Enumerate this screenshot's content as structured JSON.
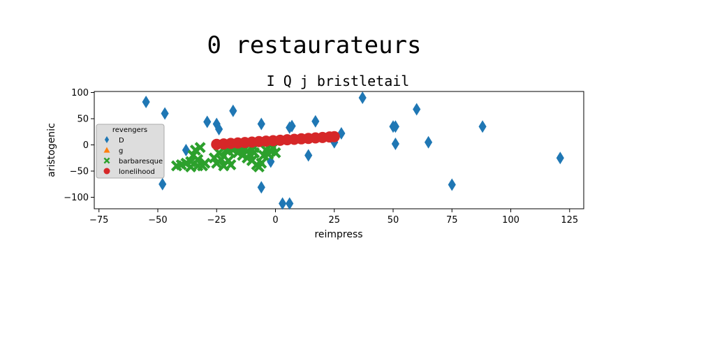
{
  "chart_data": {
    "type": "scatter",
    "suptitle": "0 restaurateurs",
    "title": "I Q j bristletail",
    "xlabel": "reimpress",
    "ylabel": "aristogenic",
    "xlim": [
      -77,
      131
    ],
    "ylim": [
      -122,
      102
    ],
    "xticks": [
      -75,
      -50,
      -25,
      0,
      25,
      50,
      75,
      100,
      125
    ],
    "yticks": [
      -100,
      -50,
      0,
      50,
      100
    ],
    "grid": false,
    "legend": {
      "title": "revengers",
      "placement": "center-left",
      "entries": [
        "D",
        "g",
        "barbaresque",
        "lonelihood"
      ]
    },
    "series": [
      {
        "name": "D",
        "marker": "thin-diamond",
        "color": "#1f77b4",
        "points": [
          [
            -55,
            82
          ],
          [
            -47,
            60
          ],
          [
            -48,
            -75
          ],
          [
            -38,
            -10
          ],
          [
            -29,
            44
          ],
          [
            -25,
            40
          ],
          [
            -24,
            30
          ],
          [
            -18,
            65
          ],
          [
            -6,
            40
          ],
          [
            -6,
            -81
          ],
          [
            -2,
            -32
          ],
          [
            3,
            -112
          ],
          [
            6,
            -112
          ],
          [
            6,
            33
          ],
          [
            7,
            36
          ],
          [
            14,
            -20
          ],
          [
            17,
            45
          ],
          [
            25,
            5
          ],
          [
            28,
            22
          ],
          [
            37,
            90
          ],
          [
            50,
            35
          ],
          [
            51,
            35
          ],
          [
            51,
            2
          ],
          [
            60,
            68
          ],
          [
            65,
            5
          ],
          [
            75,
            -76
          ],
          [
            88,
            35
          ],
          [
            121,
            -25
          ]
        ]
      },
      {
        "name": "g",
        "marker": "triangle",
        "color": "#ff7f0e",
        "points": []
      },
      {
        "name": "barbaresque",
        "marker": "x-filled",
        "color": "#2ca02c",
        "points": [
          [
            -42,
            -40
          ],
          [
            -40,
            -38
          ],
          [
            -38,
            -35
          ],
          [
            -36,
            -32
          ],
          [
            -35,
            -20
          ],
          [
            -34,
            -10
          ],
          [
            -33,
            -28
          ],
          [
            -32,
            -5
          ],
          [
            -31,
            -40
          ],
          [
            -30,
            -35
          ],
          [
            -33,
            -40
          ],
          [
            -36,
            -42
          ],
          [
            -26,
            -25
          ],
          [
            -25,
            -35
          ],
          [
            -24,
            -15
          ],
          [
            -23,
            -28
          ],
          [
            -22,
            -40
          ],
          [
            -21,
            -10
          ],
          [
            -20,
            -30
          ],
          [
            -19,
            -38
          ],
          [
            -18,
            -10
          ],
          [
            -16,
            -15
          ],
          [
            -15,
            -5
          ],
          [
            -14,
            -20
          ],
          [
            -13,
            -8
          ],
          [
            -12,
            -25
          ],
          [
            -11,
            -18
          ],
          [
            -10,
            -30
          ],
          [
            -9,
            -15
          ],
          [
            -8,
            -38
          ],
          [
            -7,
            -42
          ],
          [
            -6,
            -35
          ],
          [
            -5,
            -20
          ],
          [
            -4,
            -10
          ],
          [
            -3,
            -18
          ],
          [
            -2,
            -12
          ],
          [
            -1,
            -5
          ],
          [
            0,
            -15
          ],
          [
            -20,
            -12
          ],
          [
            -17,
            -5
          ],
          [
            -9,
            -5
          ],
          [
            -12,
            -12
          ]
        ]
      },
      {
        "name": "lonelihood",
        "marker": "circle",
        "color": "#d62728",
        "points": [
          [
            -25,
            1
          ],
          [
            -22,
            1.9
          ],
          [
            -19,
            2.8
          ],
          [
            -16,
            3.6
          ],
          [
            -13,
            4.5
          ],
          [
            -10,
            5.4
          ],
          [
            -7,
            6.3
          ],
          [
            -4,
            7.2
          ],
          [
            -1,
            8
          ],
          [
            2,
            8.9
          ],
          [
            5,
            9.8
          ],
          [
            8,
            10.7
          ],
          [
            11,
            11.6
          ],
          [
            14,
            12.4
          ],
          [
            17,
            13.3
          ],
          [
            20,
            14.2
          ],
          [
            23,
            15.1
          ],
          [
            25,
            15.7
          ]
        ]
      }
    ]
  }
}
